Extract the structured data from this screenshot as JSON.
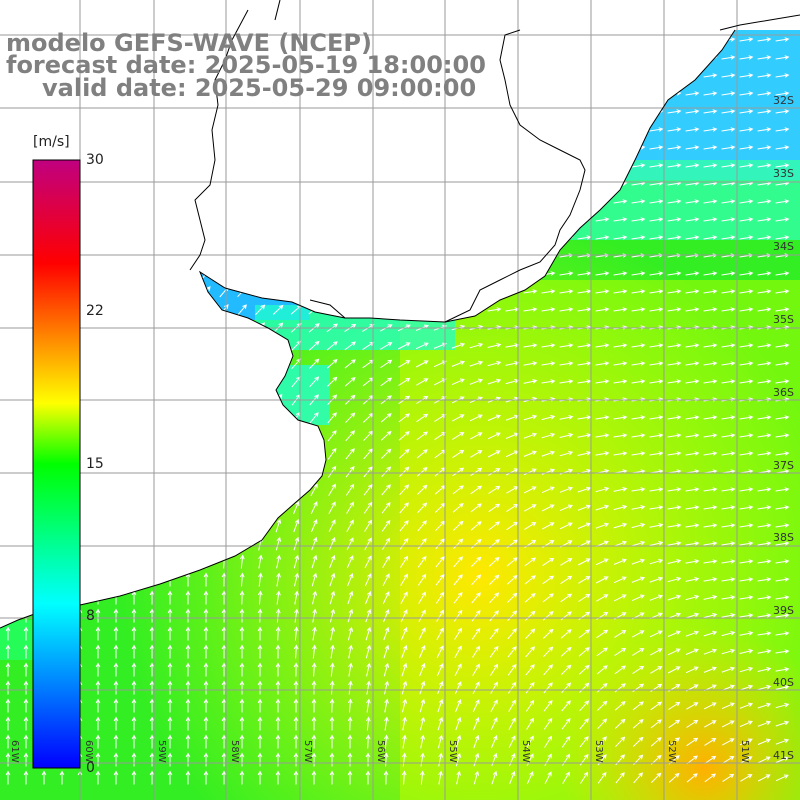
{
  "title": {
    "line1": "modelo GEFS-WAVE (NCEP)",
    "line2": "forecast date: 2025-05-19 18:00:00",
    "line3": "valid date: 2025-05-29 09:00:00"
  },
  "colorbar": {
    "unit": "[m/s]",
    "ticks": [
      "30",
      "22",
      "15",
      "8",
      "0"
    ],
    "tick_values": [
      30,
      22,
      15,
      8,
      0
    ],
    "colors": [
      "#0000ff",
      "#00ffff",
      "#00ff00",
      "#ffff00",
      "#ff0000",
      "#c00080"
    ]
  },
  "lat_labels": [
    "32S",
    "33S",
    "34S",
    "35S",
    "36S",
    "37S",
    "38S",
    "39S",
    "40S",
    "41S"
  ],
  "lon_labels": [
    "61W",
    "60W",
    "59W",
    "58W",
    "57W",
    "56W",
    "55W",
    "54W",
    "53W",
    "52W",
    "51W"
  ],
  "map": {
    "land_color": "#ffffff",
    "coast_color": "#000000",
    "grid_color": "#9a9a9a",
    "arrow_color": "#ffffff"
  }
}
